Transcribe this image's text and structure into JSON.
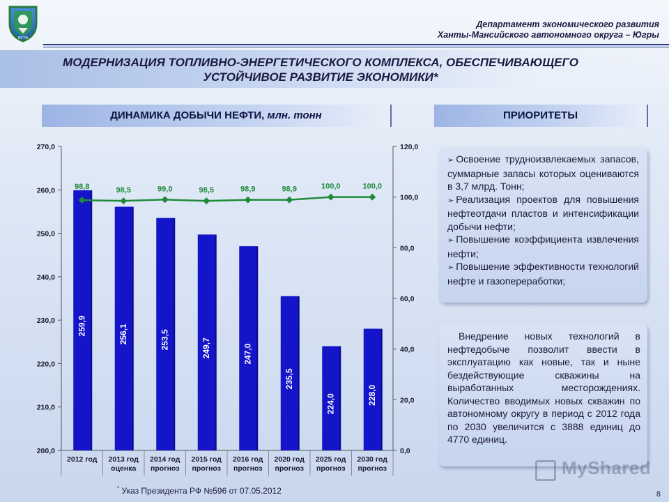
{
  "header": {
    "dept_line1": "Департамент экономического развития",
    "dept_line2": "Ханты-Мансийского автономного округа – Югры",
    "title_line1": "МОДЕРНИЗАЦИЯ ТОПЛИВНО-ЭНЕРГЕТИЧЕСКОГО КОМПЛЕКСА, ОБЕСПЕЧИВАЮЩЕГО",
    "title_line2": "УСТОЙЧИВОЕ РАЗВИТИЕ ЭКОНОМИКИ*",
    "emblem_icon": "coat-of-arms-icon",
    "emblem_text": "ЮГРА"
  },
  "chart_section": {
    "head_bold": "ДИНАМИКА ДОБЫЧИ НЕФТИ,",
    "head_italic": " млн. тонн"
  },
  "priorities_section": {
    "head": "ПРИОРИТЕТЫ"
  },
  "chart_data": {
    "type": "bar",
    "categories": [
      [
        "2012 год"
      ],
      [
        "2013 год",
        "оценка"
      ],
      [
        "2014 год",
        "прогноз"
      ],
      [
        "2015 год",
        "прогноз"
      ],
      [
        "2016 год",
        "прогноз"
      ],
      [
        "2020 год",
        "прогноз"
      ],
      [
        "2025 год",
        "прогноз"
      ],
      [
        "2030 год",
        "прогноз"
      ]
    ],
    "series": [
      {
        "type": "bar",
        "axis": "left",
        "values": [
          259.9,
          256.1,
          253.5,
          249.7,
          247.0,
          235.5,
          224.0,
          228.0
        ],
        "labels": [
          "259,9",
          "256,1",
          "253,5",
          "249,7",
          "247,0",
          "235,5",
          "224,0",
          "228,0"
        ],
        "color": "#1414c8"
      },
      {
        "type": "line",
        "axis": "right",
        "values": [
          98.8,
          98.5,
          99.0,
          98.5,
          98.9,
          98.9,
          100.0,
          100.0
        ],
        "labels": [
          "98,8",
          "98,5",
          "99,0",
          "98,5",
          "98,9",
          "98,9",
          "100,0",
          "100,0"
        ],
        "color": "#1f8a3a"
      }
    ],
    "y_left": {
      "range": [
        200,
        270
      ],
      "ticks": [
        200,
        210,
        220,
        230,
        240,
        250,
        260,
        270
      ],
      "tick_labels": [
        "200,0",
        "210,0",
        "220,0",
        "230,0",
        "240,0",
        "250,0",
        "260,0",
        "270,0"
      ]
    },
    "y_right": {
      "range": [
        0,
        120
      ],
      "ticks": [
        0,
        20,
        40,
        60,
        80,
        100,
        120
      ],
      "tick_labels": [
        "0,0",
        "20,0",
        "40,0",
        "60,0",
        "80,0",
        "100,0",
        "120,0"
      ]
    },
    "grid": false
  },
  "panel1": {
    "items": [
      "Освоение трудноизвлекаемых запасов, суммарные запасы которых оцениваются в 3,7 млрд. Тонн;",
      "Реализация проектов для повышения нефтеотдачи пластов и интенсификации добычи нефти;",
      "Повышение коэффициента извлечения нефти;",
      "Повышение эффективности технологий нефте и газопереработки;"
    ],
    "bullet_icon": "arrow-bullet-icon"
  },
  "panel2": {
    "text": "Внедрение новых технологий в нефтедобыче позволит ввести в эксплуатацию как новые, так и ныне бездействующие скважины на выработанных месторождениях. Количество вводимых новых скважин по автономному округу в период с 2012 года по 2030 увеличится с 3888 единиц до 4770 единиц."
  },
  "footnote": {
    "mark": "*",
    "text": " Указ Президента РФ №596 от 07.05.2012"
  },
  "page_number": "8",
  "watermark": {
    "icon": "myshared-logo-icon",
    "text": "MyShared"
  }
}
